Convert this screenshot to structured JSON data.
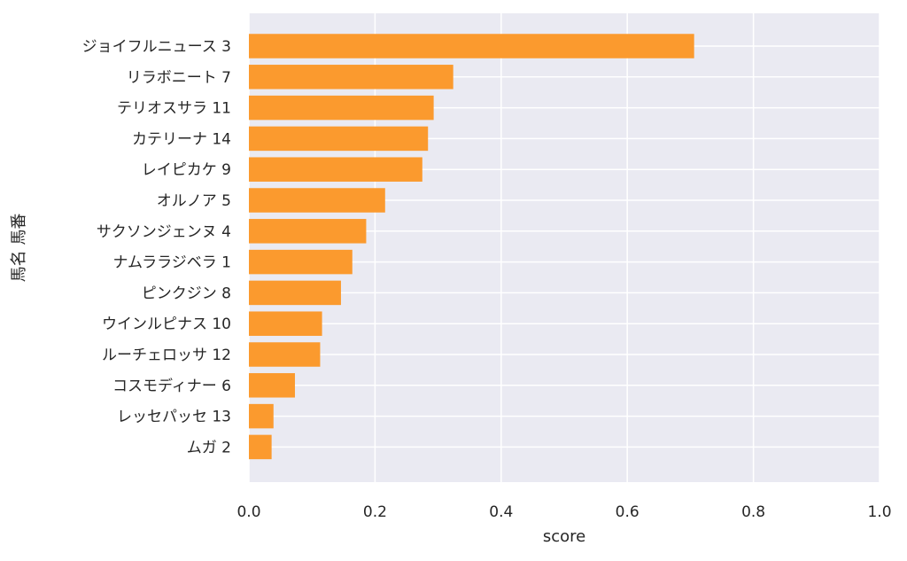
{
  "chart_data": {
    "type": "bar",
    "orientation": "horizontal",
    "categories": [
      "ジョイフルニュース 3",
      "リラボニート 7",
      "テリオスサラ 11",
      "カテリーナ 14",
      "レイピカケ 9",
      "オルノア 5",
      "サクソンジェンヌ 4",
      "ナムララジベラ 1",
      "ピンクジン 8",
      "ウインルピナス 10",
      "ルーチェロッサ 12",
      "コスモディナー 6",
      "レッセパッセ 13",
      "ムガ 2"
    ],
    "values": [
      0.706,
      0.324,
      0.293,
      0.284,
      0.275,
      0.216,
      0.186,
      0.164,
      0.146,
      0.116,
      0.113,
      0.073,
      0.039,
      0.036
    ],
    "xlabel": "score",
    "ylabel": "馬名 馬番",
    "xlim": [
      0.0,
      1.0
    ],
    "xticks": [
      "0.0",
      "0.2",
      "0.4",
      "0.6",
      "0.8",
      "1.0"
    ],
    "grid": true,
    "colors": {
      "bar": "#fb9a2e",
      "plot_background": "#eaeaf2",
      "grid": "#ffffff",
      "text": "#262626"
    }
  }
}
